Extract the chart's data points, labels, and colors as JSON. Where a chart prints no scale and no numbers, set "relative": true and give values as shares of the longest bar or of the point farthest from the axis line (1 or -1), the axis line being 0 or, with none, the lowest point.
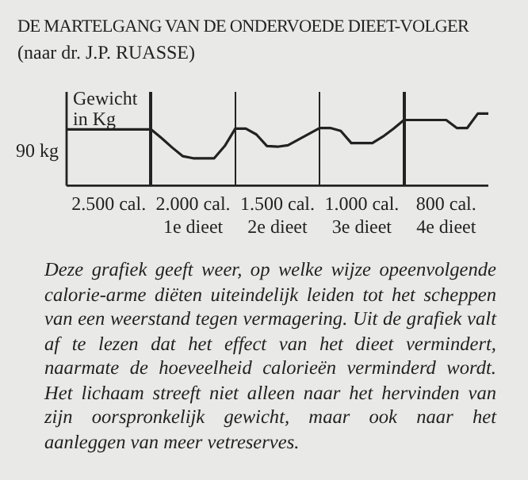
{
  "chart_data": {
    "type": "line",
    "title": "DE MARTELGANG VAN DE ONDERVOEDE DIEET-VOLGER",
    "subtitle": "(naar dr. J.P. RUASSE)",
    "ylabel": "Gewicht in Kg",
    "relative": true,
    "categories": [
      null,
      null,
      null,
      null,
      "2.500 cal.",
      null,
      null,
      null,
      null,
      null,
      null,
      null,
      "2.000 cal.\n1e dieet",
      null,
      null,
      null,
      null,
      null,
      null,
      null,
      "1.500 cal.\n2e dieet",
      null,
      null,
      null,
      null,
      null,
      null,
      null,
      "1.000 cal.\n3e dieet",
      null,
      null,
      null,
      null,
      null,
      null,
      null,
      "800 cal.\n4e dieet",
      null,
      null,
      null,
      null
    ],
    "series": [
      {
        "color": "#222222",
        "values": [
          0.78,
          0.78,
          0.78,
          0.78,
          0.78,
          0.78,
          0.78,
          0.78,
          0.78,
          0.66,
          0.53,
          0.41,
          0.38,
          0.38,
          0.38,
          0.55,
          0.79,
          0.79,
          0.71,
          0.55,
          0.54,
          0.56,
          0.64,
          0.72,
          0.8,
          0.8,
          0.76,
          0.59,
          0.59,
          0.59,
          0.68,
          0.79,
          0.91,
          0.91,
          0.91,
          0.91,
          0.91,
          0.8,
          0.8,
          1,
          1
        ]
      }
    ],
    "annotations": [
      "90 kg",
      "Deze grafiek geeft weer, op welke wijze opeenvolgende calorie-arme diëten uiteindelijk leiden tot het scheppen van een weerstand tegen vermagering. Uit de grafiek valt af te lezen dat het effect van het dieet vermindert, naarmate de hoeveelheid calorieën verminderd wordt. Het lichaam streeft niet alleen naar het hervinden van zijn oorspronkelijk gewicht, maar ook naar het aanleggen van meer vetreserves."
    ],
    "grid": false,
    "legend": false,
    "marker": "none",
    "line_style": "solid"
  }
}
